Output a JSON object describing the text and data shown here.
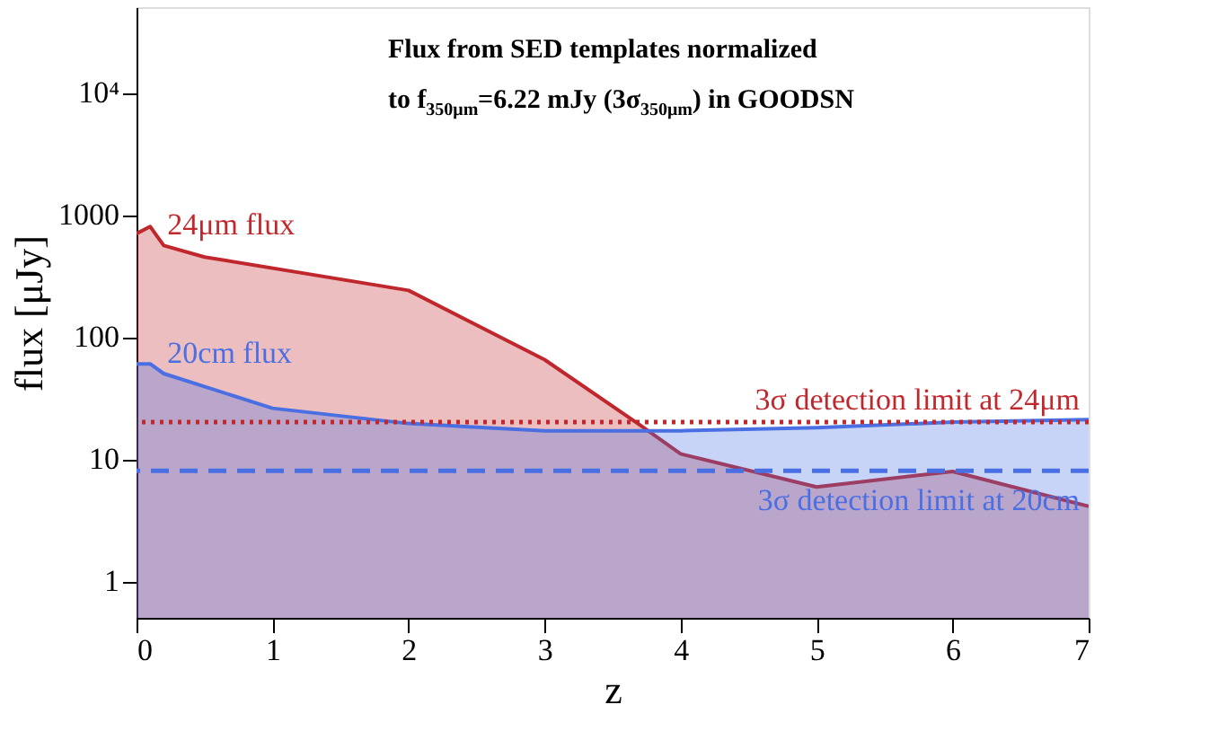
{
  "chart_data": {
    "type": "area",
    "xlabel": "z",
    "ylabel": "flux [μJy]",
    "log": "y",
    "xlim": [
      0,
      7
    ],
    "ylim": [
      0.5,
      50000
    ],
    "xticks": [
      0,
      1,
      2,
      3,
      4,
      5,
      6,
      7
    ],
    "yticks": [
      1,
      10,
      100,
      1000,
      {
        "value": 10000,
        "label": "10⁴"
      }
    ],
    "grid": false,
    "annotations": [
      "Flux from SED templates normalized",
      "to f$_{350μm}$=6.22 mJy (3σ$_{350μm}$) in GOODSN"
    ],
    "series": [
      {
        "name": "24μm flux",
        "color": "#c0282d",
        "x": [
          0,
          0.1,
          0.2,
          0.5,
          2,
          3,
          3.7,
          4,
          5,
          6,
          7
        ],
        "values": [
          700,
          800,
          560,
          450,
          240,
          65,
          19,
          11,
          5.9,
          7.9,
          4.1
        ]
      },
      {
        "name": "20cm flux",
        "color": "#4a6fe3",
        "x": [
          0,
          0.1,
          0.2,
          1,
          2,
          3,
          4,
          5,
          6,
          7
        ],
        "values": [
          60,
          60,
          50,
          26,
          19.5,
          17,
          17,
          18,
          20,
          21
        ]
      }
    ],
    "ref_lines": [
      {
        "axis": "y",
        "value": 20,
        "label": "3σ detection limit at 24μm",
        "color": "#c0282d",
        "line_style": "dotted"
      },
      {
        "axis": "y",
        "value": 8,
        "label": "3σ detection limit at 20cm",
        "color": "#4a6fe3",
        "line_style": "dashed"
      }
    ]
  }
}
